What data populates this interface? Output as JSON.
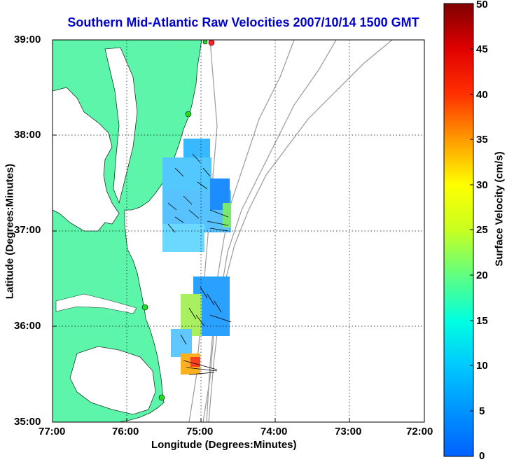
{
  "title": "Southern Mid-Atlantic Raw Velocities 2007/10/14 1500 GMT",
  "xlabel": "Longitude (Degrees:Minutes)",
  "ylabel": "Latitude (Degrees:Minutes)",
  "colorbar_label": "Surface Velocity (cm/s)",
  "x_ticks": [
    "77:00",
    "76:00",
    "75:00",
    "74:00",
    "73:00",
    "72:00"
  ],
  "y_ticks": [
    "39:00",
    "38:00",
    "37:00",
    "36:00",
    "35:00"
  ],
  "colorbar_ticks": [
    "50",
    "45",
    "40",
    "35",
    "30",
    "25",
    "20",
    "15",
    "10",
    "5",
    "0"
  ],
  "chart_data": {
    "type": "heatmap",
    "title": "Southern Mid-Atlantic Raw Velocities 2007/10/14 1500 GMT",
    "xlabel": "Longitude (Degrees:Minutes)",
    "ylabel": "Latitude (Degrees:Minutes)",
    "xlim": [
      "77:00",
      "72:00"
    ],
    "ylim": [
      "35:00",
      "39:00"
    ],
    "colorbar": {
      "label": "Surface Velocity (cm/s)",
      "range": [
        0,
        50
      ]
    },
    "grid": true,
    "colors": {
      "land": "#5cf5a9",
      "velocity_low": "#0060ff",
      "velocity_high": "#7f0000",
      "site_marker": "#22dd22",
      "site_marker_active": "#ff2020"
    }
  }
}
